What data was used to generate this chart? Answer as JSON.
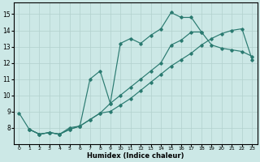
{
  "xlabel": "Humidex (Indice chaleur)",
  "xlim": [
    -0.5,
    23.5
  ],
  "ylim": [
    7.0,
    15.7
  ],
  "xticks": [
    0,
    1,
    2,
    3,
    4,
    5,
    6,
    7,
    8,
    9,
    10,
    11,
    12,
    13,
    14,
    15,
    16,
    17,
    18,
    19,
    20,
    21,
    22,
    23
  ],
  "yticks": [
    8,
    9,
    10,
    11,
    12,
    13,
    14,
    15
  ],
  "bg_color": "#cce8e6",
  "line_color": "#2a7a70",
  "grid_color": "#b2d0cd",
  "line1_x": [
    0,
    1,
    2,
    3,
    4,
    5,
    6,
    7,
    8,
    9,
    10,
    11,
    12,
    13,
    14,
    15,
    16,
    17,
    18
  ],
  "line1_y": [
    8.9,
    7.9,
    7.6,
    7.7,
    7.6,
    8.0,
    8.1,
    11.0,
    11.5,
    9.5,
    13.2,
    13.5,
    13.2,
    13.7,
    14.1,
    15.1,
    14.8,
    14.8,
    13.9
  ],
  "line2_x": [
    1,
    2,
    3,
    4,
    5,
    6,
    7,
    8,
    9,
    10,
    11,
    12,
    13,
    14,
    15,
    16,
    17,
    18,
    19,
    20,
    21,
    22,
    23
  ],
  "line2_y": [
    7.9,
    7.6,
    7.7,
    7.6,
    7.9,
    8.1,
    8.5,
    8.9,
    9.5,
    10.0,
    10.5,
    11.0,
    11.5,
    12.0,
    13.1,
    13.4,
    13.9,
    13.9,
    13.1,
    12.9,
    12.8,
    12.7,
    12.4
  ],
  "line3_x": [
    1,
    2,
    3,
    4,
    5,
    6,
    7,
    8,
    9,
    10,
    11,
    12,
    13,
    14,
    15,
    16,
    17,
    18,
    19,
    20,
    21,
    22,
    23
  ],
  "line3_y": [
    7.9,
    7.6,
    7.7,
    7.6,
    7.9,
    8.1,
    8.5,
    8.9,
    9.0,
    9.4,
    9.8,
    10.3,
    10.8,
    11.3,
    11.8,
    12.2,
    12.6,
    13.1,
    13.5,
    13.8,
    14.0,
    14.1,
    12.2
  ]
}
